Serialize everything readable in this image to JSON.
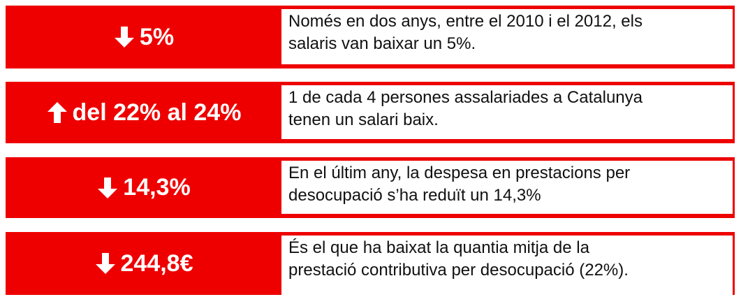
{
  "rows": [
    {
      "figure": "5%",
      "lines": [
        "Només en dos anys, entre el 2010 i el 2012, els",
        "salaris van baixar un 5%."
      ]
    },
    {
      "figure": "del 22% al 24%",
      "lines": [
        "1 de cada 4 persones assalariades a Catalunya",
        "tenen un salari baix."
      ]
    },
    {
      "figure": "14,3%",
      "lines": [
        "En el últim any, la despesa en prestacions per",
        "desocupació s’ha reduït un 14,3%"
      ]
    },
    {
      "figure": "244,8€",
      "lines": [
        "És el que ha baixat la quantia mitja de la",
        "prestació contributiva per desocupació (22%)."
      ]
    }
  ]
}
